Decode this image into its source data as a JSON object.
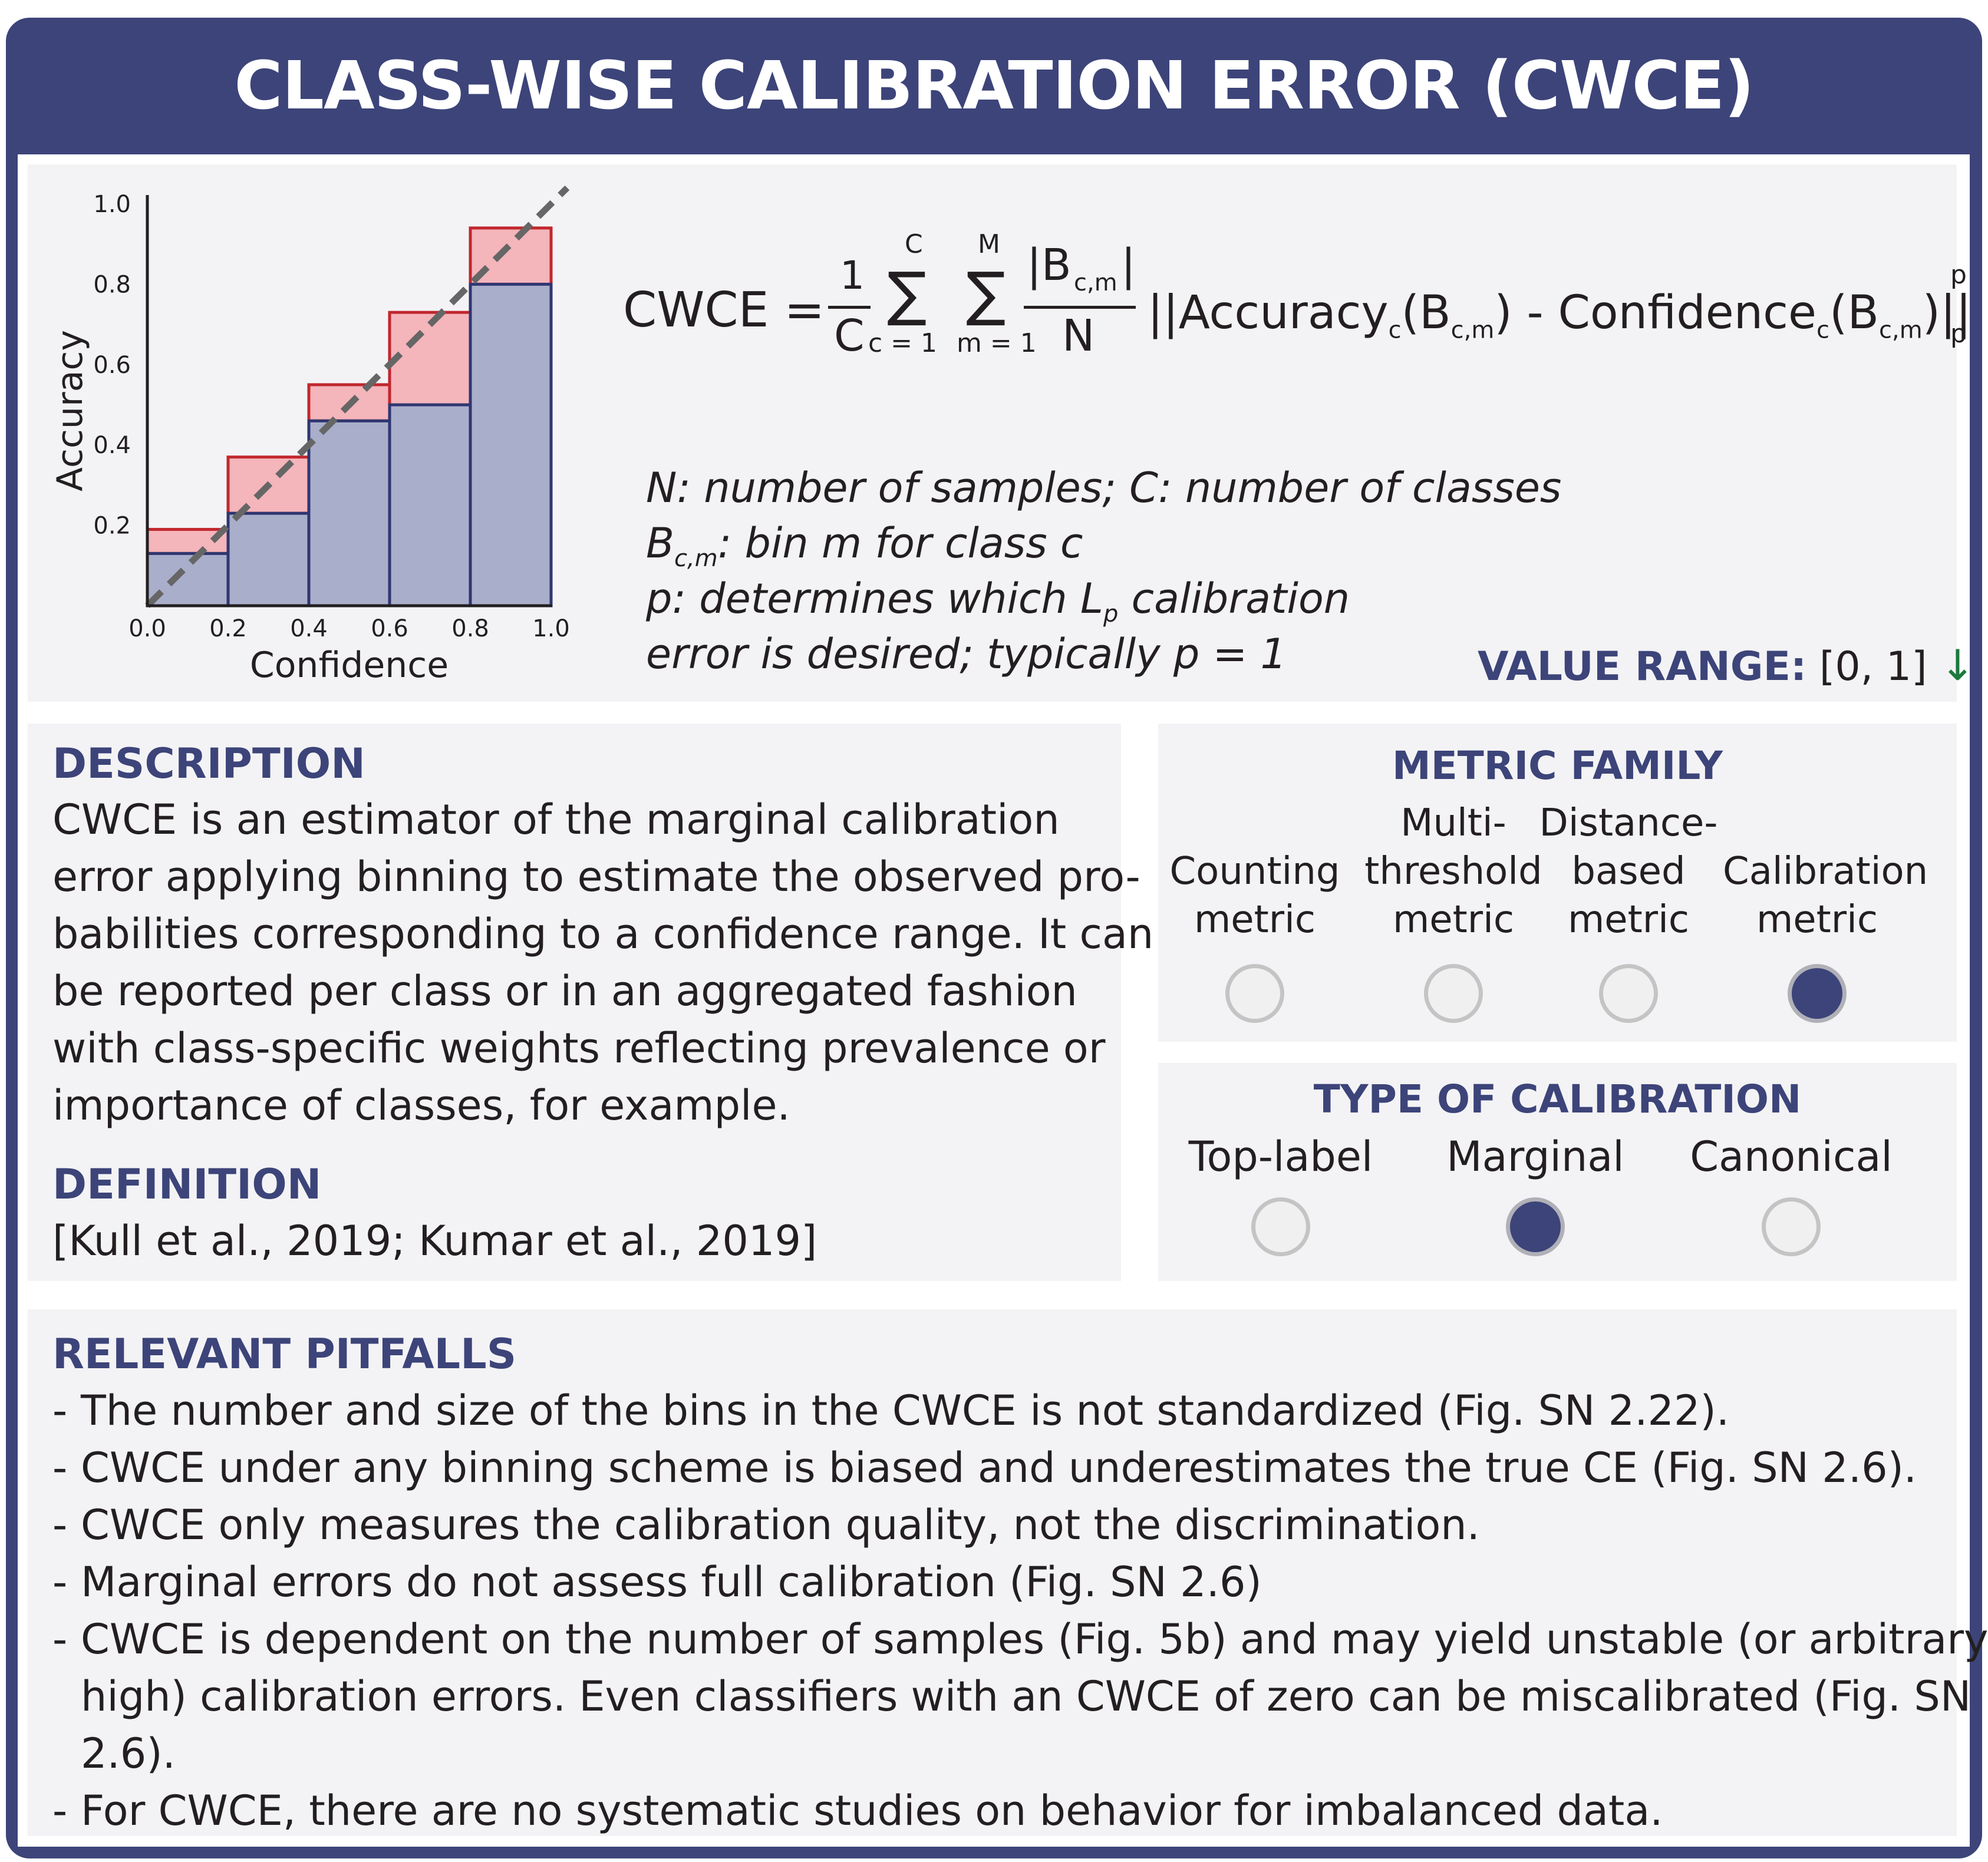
{
  "title": "CLASS-WISE CALIBRATION ERROR (CWCE)",
  "chart_data": {
    "type": "bar",
    "xlabel": "Confidence",
    "ylabel": "Accuracy",
    "x_ticks": [
      "0.0",
      "0.2",
      "0.4",
      "0.6",
      "0.8",
      "1.0"
    ],
    "y_ticks": [
      "0.2",
      "0.4",
      "0.6",
      "0.8",
      "1.0"
    ],
    "xlim": [
      0,
      1
    ],
    "ylim": [
      0,
      1
    ],
    "bins": [
      {
        "start": 0.0,
        "end": 0.2,
        "accuracy": 0.13,
        "confidence": 0.19
      },
      {
        "start": 0.2,
        "end": 0.4,
        "accuracy": 0.23,
        "confidence": 0.37
      },
      {
        "start": 0.4,
        "end": 0.6,
        "accuracy": 0.46,
        "confidence": 0.55
      },
      {
        "start": 0.6,
        "end": 0.8,
        "accuracy": 0.5,
        "confidence": 0.73
      },
      {
        "start": 0.8,
        "end": 1.0,
        "accuracy": 0.8,
        "confidence": 0.94
      }
    ],
    "diagonal": true,
    "colors": {
      "accuracy_fill": "#a9aecb",
      "accuracy_stroke": "#2f3670",
      "gap_fill": "#f4b5bb",
      "gap_stroke": "#c1272d",
      "diagonal": "#666666"
    }
  },
  "formula": {
    "lhs": "CWCE =",
    "frac_num": "1",
    "frac_den": "C",
    "sum1_upper": "C",
    "sum1_lower": "c = 1",
    "sum2_upper": "M",
    "sum2_lower": "m = 1",
    "sigma": "∑",
    "bin_num": "|B",
    "bin_sub": "c,m",
    "bin_close": "|",
    "bin_den": "N",
    "norm_open": "||",
    "acc": "Accuracy",
    "acc_sub": "c",
    "paren_open": "(B",
    "paren_sub": "c,m",
    "paren_close": ")",
    "minus": " - ",
    "conf": "Confidence",
    "conf_sub": "c",
    "norm_close": "||",
    "power": "p",
    "norm_sub": "p"
  },
  "legend": {
    "line1": "N: number of samples; C: number of classes",
    "line2_main": "B",
    "line2_sub": "c,m",
    "line2_rest": ": bin m for class c",
    "line3_main": "p: determines which L",
    "line3_sub": "p",
    "line3_rest": " calibration",
    "line4": "error is desired; typically p = 1"
  },
  "value_range": {
    "label": "VALUE RANGE:",
    "value": "[0, 1]",
    "arrow": "↓",
    "arrow_color": "#1a7a3c"
  },
  "description": {
    "heading": "DESCRIPTION",
    "lines": [
      "CWCE is an estimator of the marginal calibration",
      "error applying binning to estimate the observed pro-",
      "babilities corresponding to a confidence range. It can",
      "be reported per class or in an aggregated fashion",
      "with class-specific weights reflecting prevalence or",
      "importance of classes, for example."
    ]
  },
  "definition": {
    "heading": "DEFINITION",
    "text": "[Kull et al., 2019; Kumar et al., 2019]"
  },
  "metric_family": {
    "heading": "METRIC FAMILY",
    "options": [
      {
        "lines": [
          "",
          "Counting",
          "metric"
        ],
        "selected": false
      },
      {
        "lines": [
          "Multi-",
          "threshold",
          "metric"
        ],
        "selected": false
      },
      {
        "lines": [
          "Distance-",
          "based",
          "metric"
        ],
        "selected": false
      },
      {
        "lines": [
          "",
          "Calibration",
          "metric"
        ],
        "selected": true
      }
    ]
  },
  "calibration_type": {
    "heading": "TYPE OF CALIBRATION",
    "options": [
      {
        "label": "Top-label",
        "selected": false
      },
      {
        "label": "Marginal",
        "selected": true
      },
      {
        "label": "Canonical",
        "selected": false
      }
    ]
  },
  "pitfalls": {
    "heading": "RELEVANT PITFALLS",
    "dash": "-",
    "lines": [
      {
        "dash": true,
        "text": "The number and size of the bins in the CWCE is not standardized (Fig. SN 2.22)."
      },
      {
        "dash": true,
        "text": "CWCE under any binning scheme is biased and underestimates the true CE (Fig. SN 2.6)."
      },
      {
        "dash": true,
        "text": "CWCE only measures the calibration quality, not the discrimination."
      },
      {
        "dash": true,
        "text": "Marginal errors do not assess full calibration (Fig. SN 2.6)"
      },
      {
        "dash": true,
        "text": "CWCE is dependent on the number of samples (Fig. 5b) and may yield unstable (or arbitrary"
      },
      {
        "dash": false,
        "text": "high) calibration errors. Even classifiers with an CWCE of zero can be miscalibrated (Fig. SN"
      },
      {
        "dash": false,
        "text": "2.6)."
      },
      {
        "dash": true,
        "text": "For CWCE, there are no systematic studies on behavior for imbalanced data."
      }
    ]
  }
}
